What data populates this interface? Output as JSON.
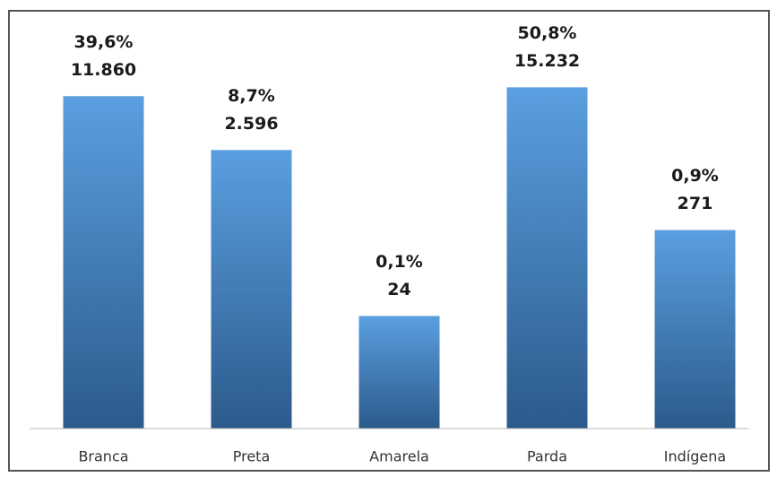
{
  "chart_data": {
    "type": "bar",
    "categories": [
      "Branca",
      "Preta",
      "Amarela",
      "Parda",
      "Indígena"
    ],
    "values": [
      11860,
      2596,
      24,
      15232,
      271
    ],
    "value_labels": [
      "11.860",
      "2.596",
      "24",
      "15.232",
      "271"
    ],
    "percentages": [
      39.6,
      8.7,
      0.1,
      50.8,
      0.9
    ],
    "percentage_labels": [
      "39,6%",
      "8,7%",
      "0,1%",
      "50,8%",
      "0,9%"
    ],
    "color": "#4f8fd0",
    "log_scale": true,
    "ylim": [
      1,
      100000
    ]
  }
}
